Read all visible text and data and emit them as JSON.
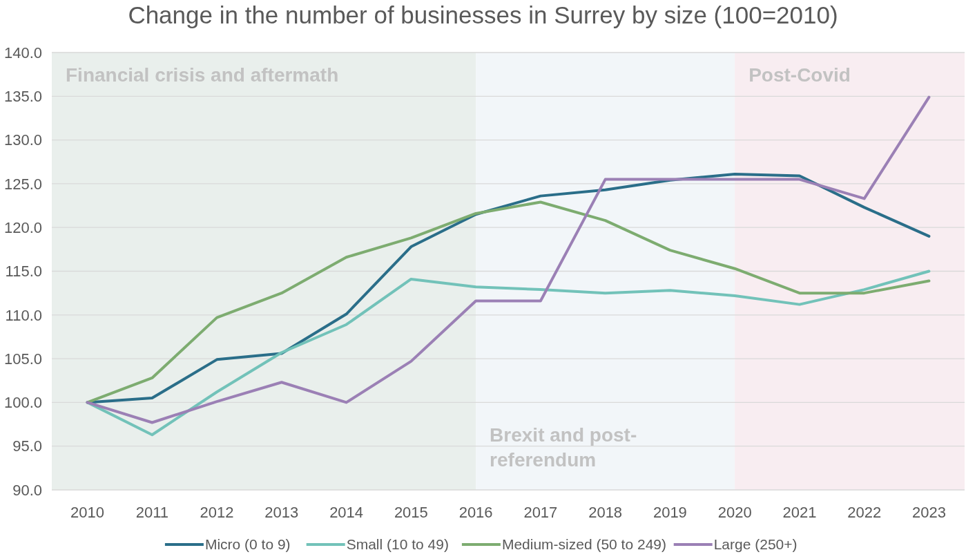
{
  "chart_data": {
    "type": "line",
    "title": "Change in the number of businesses in Surrey by size (100=2010)",
    "categories": [
      "2010",
      "2011",
      "2012",
      "2013",
      "2014",
      "2015",
      "2016",
      "2017",
      "2018",
      "2019",
      "2020",
      "2021",
      "2022",
      "2023"
    ],
    "series": [
      {
        "name": "Micro (0 to 9)",
        "color": "#2a6e89",
        "values": [
          100,
          100.5,
          104.9,
          105.6,
          110.1,
          117.8,
          121.5,
          123.6,
          124.3,
          125.4,
          126.1,
          125.9,
          122.3,
          119.0
        ]
      },
      {
        "name": "Small (10 to 49)",
        "color": "#72c2b9",
        "values": [
          100,
          96.3,
          101.2,
          105.7,
          108.9,
          114.1,
          113.2,
          112.9,
          112.5,
          112.8,
          112.2,
          111.2,
          112.9,
          115.0
        ]
      },
      {
        "name": "Medium-sized (50 to 249)",
        "color": "#7dac70",
        "values": [
          100,
          102.8,
          109.7,
          112.5,
          116.6,
          118.8,
          121.6,
          122.9,
          120.8,
          117.4,
          115.3,
          112.5,
          112.5,
          113.9
        ]
      },
      {
        "name": "Large (250+)",
        "color": "#9b80b5",
        "values": [
          100,
          97.7,
          100.1,
          102.3,
          100.0,
          104.7,
          111.6,
          111.6,
          125.5,
          125.5,
          125.5,
          125.5,
          123.3,
          134.9
        ]
      }
    ],
    "ylim": [
      90,
      140
    ],
    "yticks": [
      {
        "value": 90,
        "label": "90.0"
      },
      {
        "value": 95,
        "label": "95.0"
      },
      {
        "value": 100,
        "label": "100.0"
      },
      {
        "value": 105,
        "label": "105.0"
      },
      {
        "value": 110,
        "label": "110.0"
      },
      {
        "value": 115,
        "label": "115.0"
      },
      {
        "value": 120,
        "label": "120.0"
      },
      {
        "value": 125,
        "label": "125.0"
      },
      {
        "value": 130,
        "label": "130.0"
      },
      {
        "value": 135,
        "label": "135.0"
      },
      {
        "value": 140,
        "label": "140.0"
      }
    ],
    "grid": "y",
    "legend": "bottom",
    "marker": "none",
    "line_style": "solid",
    "bands": [
      {
        "axis": "x",
        "from": "2010",
        "to": "2016",
        "label": "Financial crisis and aftermath",
        "color": "#e9efec"
      },
      {
        "axis": "x",
        "from": "2016",
        "to": "2020",
        "label": "Brexit and post-referendum",
        "color": "#f2f6f9"
      },
      {
        "axis": "x",
        "from": "2020",
        "to": "2023",
        "label": "Post-Covid",
        "color": "#f8edf1"
      }
    ]
  }
}
